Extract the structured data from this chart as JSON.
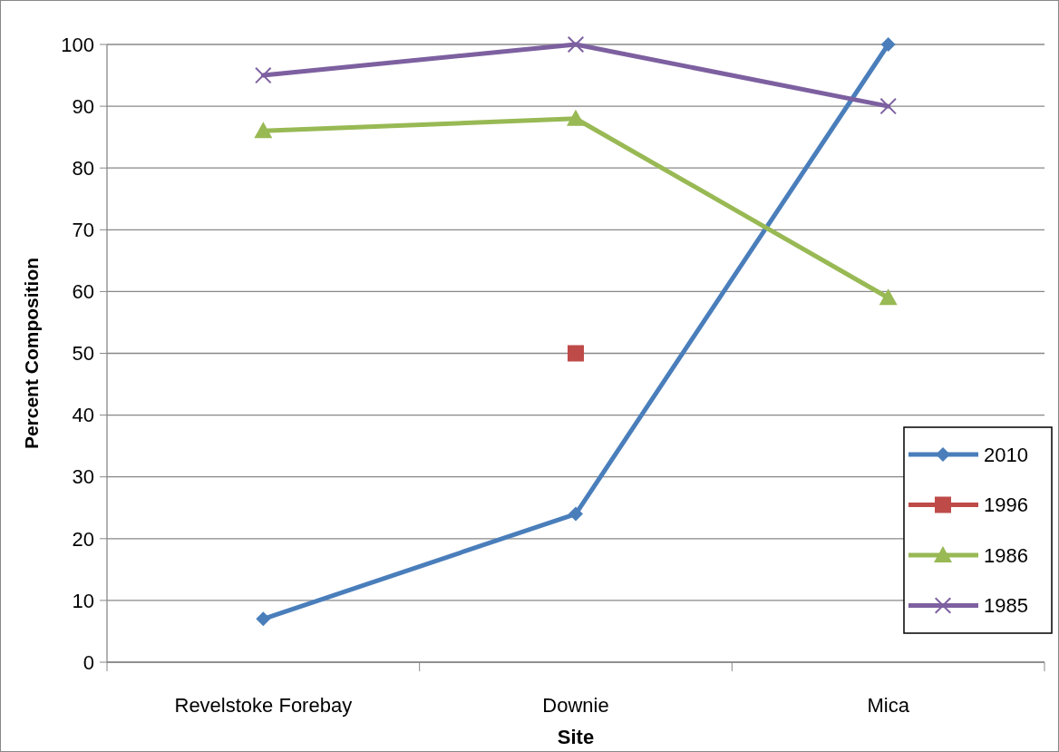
{
  "chart_data": {
    "type": "line",
    "xlabel": "Site",
    "ylabel": "Percent Composition",
    "categories": [
      "Revelstoke Forebay",
      "Downie",
      "Mica"
    ],
    "series": [
      {
        "name": "2010",
        "color": "#4a7ebb",
        "marker": "diamond",
        "values": [
          7,
          24,
          100
        ]
      },
      {
        "name": "1996",
        "color": "#be4b48",
        "marker": "square",
        "values": [
          null,
          50,
          null
        ]
      },
      {
        "name": "1986",
        "color": "#98b954",
        "marker": "triangle",
        "values": [
          86,
          88,
          59
        ]
      },
      {
        "name": "1985",
        "color": "#7d60a0",
        "marker": "cross",
        "values": [
          95,
          100,
          90
        ]
      }
    ],
    "ylim": [
      0,
      100
    ],
    "yticks": [
      0,
      10,
      20,
      30,
      40,
      50,
      60,
      70,
      80,
      90,
      100
    ],
    "grid": "y",
    "legend": "bottom right"
  }
}
